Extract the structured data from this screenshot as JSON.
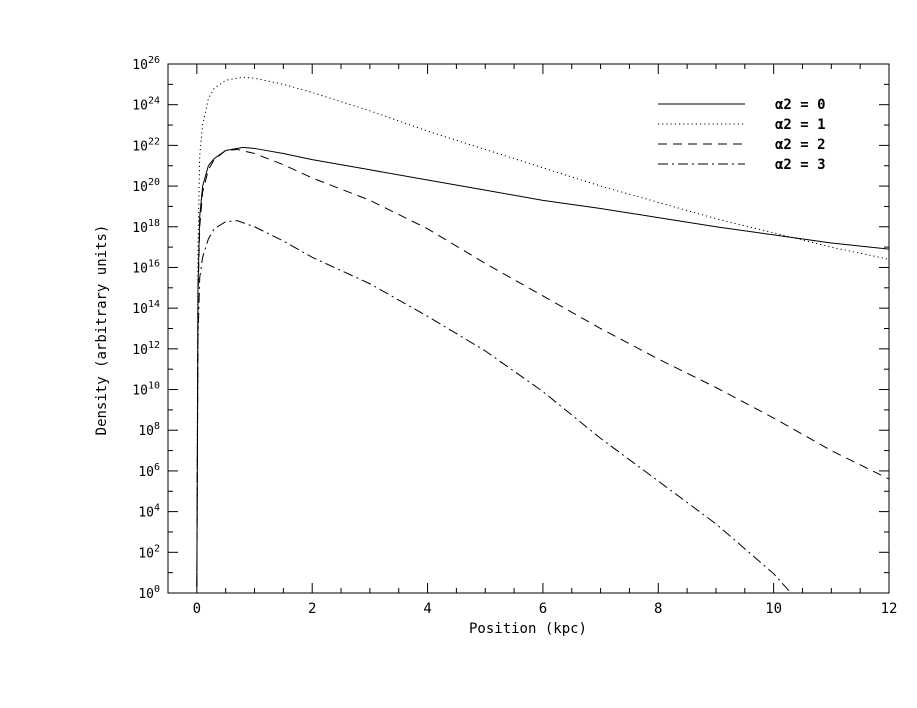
{
  "chart_data": {
    "type": "line",
    "title": "",
    "xlabel": "Position (kpc)",
    "ylabel": "Density (arbitrary units)",
    "xlim": [
      -0.5,
      12
    ],
    "ylim_exponent": [
      0,
      26
    ],
    "yscale": "log",
    "x_ticks": [
      0,
      2,
      4,
      6,
      8,
      10,
      12
    ],
    "y_tick_exponents": [
      0,
      2,
      4,
      6,
      8,
      10,
      12,
      14,
      16,
      18,
      20,
      22,
      24,
      26
    ],
    "y_tick_base": "10",
    "grid": false,
    "legend_position": "top-right",
    "series": [
      {
        "name": "α2 = 0",
        "style": "solid",
        "points": [
          [
            0.0,
            0.3
          ],
          [
            0.02,
            15.0
          ],
          [
            0.05,
            18.5
          ],
          [
            0.1,
            20.0
          ],
          [
            0.2,
            21.0
          ],
          [
            0.3,
            21.35
          ],
          [
            0.5,
            21.75
          ],
          [
            0.8,
            21.9
          ],
          [
            1.0,
            21.85
          ],
          [
            1.5,
            21.6
          ],
          [
            2.0,
            21.3
          ],
          [
            3.0,
            20.8
          ],
          [
            4.0,
            20.3
          ],
          [
            5.0,
            19.8
          ],
          [
            6.0,
            19.3
          ],
          [
            7.0,
            18.9
          ],
          [
            8.0,
            18.45
          ],
          [
            9.0,
            18.0
          ],
          [
            10.0,
            17.6
          ],
          [
            11.0,
            17.2
          ],
          [
            12.0,
            16.9
          ]
        ]
      },
      {
        "name": "α2 = 1",
        "style": "dotted",
        "points": [
          [
            0.0,
            0.5
          ],
          [
            0.02,
            17.0
          ],
          [
            0.05,
            21.5
          ],
          [
            0.1,
            23.0
          ],
          [
            0.2,
            24.3
          ],
          [
            0.3,
            24.8
          ],
          [
            0.5,
            25.2
          ],
          [
            0.8,
            25.35
          ],
          [
            1.0,
            25.3
          ],
          [
            1.5,
            25.0
          ],
          [
            2.0,
            24.6
          ],
          [
            3.0,
            23.7
          ],
          [
            4.0,
            22.7
          ],
          [
            5.0,
            21.8
          ],
          [
            6.0,
            20.9
          ],
          [
            7.0,
            20.0
          ],
          [
            8.0,
            19.2
          ],
          [
            9.0,
            18.4
          ],
          [
            10.0,
            17.7
          ],
          [
            11.0,
            17.0
          ],
          [
            12.0,
            16.4
          ]
        ]
      },
      {
        "name": "α2 = 2",
        "style": "dashed",
        "points": [
          [
            0.0,
            0.3
          ],
          [
            0.02,
            14.5
          ],
          [
            0.05,
            18.0
          ],
          [
            0.1,
            19.7
          ],
          [
            0.2,
            20.8
          ],
          [
            0.3,
            21.3
          ],
          [
            0.5,
            21.75
          ],
          [
            0.7,
            21.8
          ],
          [
            1.0,
            21.6
          ],
          [
            1.5,
            21.05
          ],
          [
            2.0,
            20.4
          ],
          [
            3.0,
            19.3
          ],
          [
            4.0,
            17.9
          ],
          [
            5.0,
            16.2
          ],
          [
            6.0,
            14.6
          ],
          [
            7.0,
            13.0
          ],
          [
            8.0,
            11.5
          ],
          [
            9.0,
            10.1
          ],
          [
            10.0,
            8.6
          ],
          [
            11.0,
            7.0
          ],
          [
            12.0,
            5.6
          ]
        ]
      },
      {
        "name": "α2 = 3",
        "style": "dashdot",
        "points": [
          [
            0.0,
            0.5
          ],
          [
            0.02,
            12.5
          ],
          [
            0.05,
            15.5
          ],
          [
            0.1,
            16.5
          ],
          [
            0.2,
            17.4
          ],
          [
            0.3,
            17.9
          ],
          [
            0.5,
            18.25
          ],
          [
            0.7,
            18.3
          ],
          [
            1.0,
            18.0
          ],
          [
            1.5,
            17.3
          ],
          [
            2.0,
            16.5
          ],
          [
            3.0,
            15.2
          ],
          [
            4.0,
            13.6
          ],
          [
            5.0,
            11.9
          ],
          [
            6.0,
            9.9
          ],
          [
            7.0,
            7.6
          ],
          [
            8.0,
            5.5
          ],
          [
            9.0,
            3.4
          ],
          [
            10.0,
            0.95
          ],
          [
            10.3,
            0.0
          ]
        ]
      }
    ]
  }
}
